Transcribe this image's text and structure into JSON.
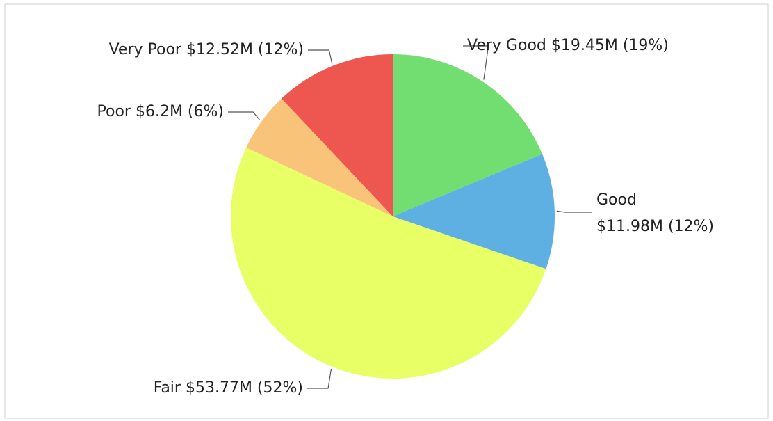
{
  "chart_data": {
    "type": "pie",
    "categories": [
      "Very Good",
      "Good",
      "Fair",
      "Poor",
      "Very Poor"
    ],
    "values": [
      19450000,
      11980000,
      53770000,
      6200000,
      12520000
    ],
    "value_labels": [
      "$19.45M (19%)",
      "$11.98M (12%)",
      "$53.77M (52%)",
      "$6.2M (6%)",
      "$12.52M (12%)"
    ],
    "colors": [
      "#72de72",
      "#5fb0e2",
      "#e8ff66",
      "#f9c479",
      "#ee5650"
    ]
  }
}
